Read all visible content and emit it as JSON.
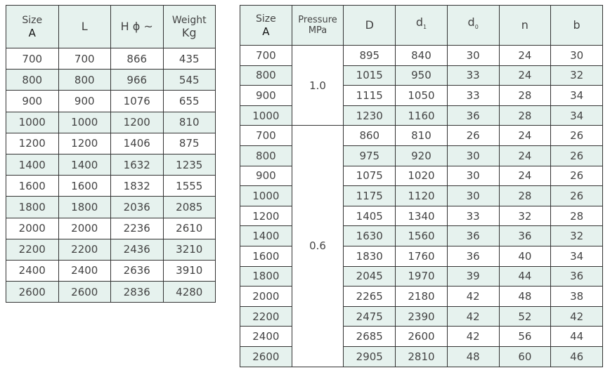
{
  "table1": {
    "headers": {
      "size": "Size",
      "size_unit": "A",
      "L": "L",
      "H": "H ϕ ~",
      "weight": "Weight",
      "weight_unit": "Kg"
    },
    "rows": [
      [
        "700",
        "700",
        "866",
        "435"
      ],
      [
        "800",
        "800",
        "966",
        "545"
      ],
      [
        "900",
        "900",
        "1076",
        "655"
      ],
      [
        "1000",
        "1000",
        "1200",
        "810"
      ],
      [
        "1200",
        "1200",
        "1406",
        "875"
      ],
      [
        "1400",
        "1400",
        "1632",
        "1235"
      ],
      [
        "1600",
        "1600",
        "1832",
        "1555"
      ],
      [
        "1800",
        "1800",
        "2036",
        "2085"
      ],
      [
        "2000",
        "2000",
        "2236",
        "2610"
      ],
      [
        "2200",
        "2200",
        "2436",
        "3210"
      ],
      [
        "2400",
        "2400",
        "2636",
        "3910"
      ],
      [
        "2600",
        "2600",
        "2836",
        "4280"
      ]
    ]
  },
  "table2": {
    "headers": {
      "size": "Size",
      "size_unit": "A",
      "pressure": "Pressure",
      "pressure_unit": "MPa",
      "D": "D",
      "d1": "d",
      "d1_sub": "1",
      "d0": "d",
      "d0_sub": "0",
      "n": "n",
      "b": "b"
    },
    "pressure_groups": [
      {
        "value": "1.0",
        "rows": 4
      },
      {
        "value": "0.6",
        "rows": 12
      }
    ],
    "rows": [
      [
        "700",
        "895",
        "840",
        "30",
        "24",
        "30"
      ],
      [
        "800",
        "1015",
        "950",
        "33",
        "24",
        "32"
      ],
      [
        "900",
        "1115",
        "1050",
        "33",
        "28",
        "34"
      ],
      [
        "1000",
        "1230",
        "1160",
        "36",
        "28",
        "34"
      ],
      [
        "700",
        "860",
        "810",
        "26",
        "24",
        "26"
      ],
      [
        "800",
        "975",
        "920",
        "30",
        "24",
        "26"
      ],
      [
        "900",
        "1075",
        "1020",
        "30",
        "24",
        "26"
      ],
      [
        "1000",
        "1175",
        "1120",
        "30",
        "28",
        "26"
      ],
      [
        "1200",
        "1405",
        "1340",
        "33",
        "32",
        "28"
      ],
      [
        "1400",
        "1630",
        "1560",
        "36",
        "36",
        "32"
      ],
      [
        "1600",
        "1830",
        "1760",
        "36",
        "40",
        "34"
      ],
      [
        "1800",
        "2045",
        "1970",
        "39",
        "44",
        "36"
      ],
      [
        "2000",
        "2265",
        "2180",
        "42",
        "48",
        "38"
      ],
      [
        "2200",
        "2475",
        "2390",
        "42",
        "52",
        "42"
      ],
      [
        "2400",
        "2685",
        "2600",
        "42",
        "56",
        "44"
      ],
      [
        "2600",
        "2905",
        "2810",
        "48",
        "60",
        "46"
      ]
    ]
  }
}
